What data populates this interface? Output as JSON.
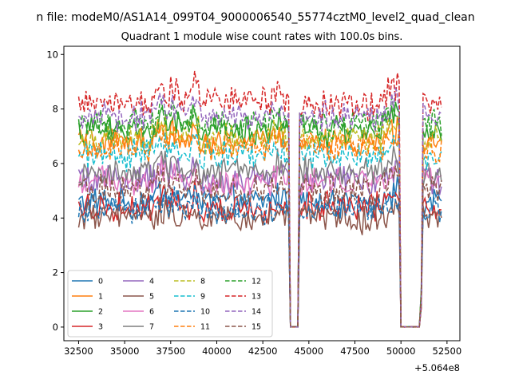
{
  "chart_data": {
    "type": "line",
    "suptitle": "n file: modeM0/AS1A14_099T04_9000006540_55774cztM0_level2_quad_clean",
    "title": "Quadrant 1 module wise count rates with 100.0s bins.",
    "xlabel": "",
    "ylabel": "",
    "x_offset_label": "+5.064e8",
    "xlim": [
      31700,
      53200
    ],
    "ylim": [
      -0.5,
      10.3
    ],
    "x_ticks": [
      32500,
      35000,
      37500,
      40000,
      42500,
      45000,
      47500,
      50000,
      52500
    ],
    "x_tick_labels": [
      "32500",
      "35000",
      "37500",
      "40000",
      "42500",
      "45000",
      "47500",
      "50000",
      "52500"
    ],
    "y_ticks": [
      0,
      2,
      4,
      6,
      8,
      10
    ],
    "y_tick_labels": [
      "0",
      "2",
      "4",
      "6",
      "8",
      "10"
    ],
    "x_start": 32500,
    "x_end": 52250,
    "bin": 100,
    "gaps": [
      [
        43920,
        44420
      ],
      [
        50000,
        51000
      ]
    ],
    "legend_position": "lower-left",
    "series": [
      {
        "name": "0",
        "base": 4.6,
        "color": "#1f77b4",
        "dash": "solid"
      },
      {
        "name": "1",
        "base": 6.8,
        "color": "#ff7f0e",
        "dash": "solid"
      },
      {
        "name": "2",
        "base": 7.2,
        "color": "#2ca02c",
        "dash": "solid"
      },
      {
        "name": "3",
        "base": 4.4,
        "color": "#d62728",
        "dash": "solid"
      },
      {
        "name": "4",
        "base": 5.4,
        "color": "#9467bd",
        "dash": "solid"
      },
      {
        "name": "5",
        "base": 4.0,
        "color": "#8c564b",
        "dash": "solid"
      },
      {
        "name": "6",
        "base": 5.3,
        "color": "#e377c2",
        "dash": "solid"
      },
      {
        "name": "7",
        "base": 5.7,
        "color": "#7f7f7f",
        "dash": "solid"
      },
      {
        "name": "8",
        "base": 6.9,
        "color": "#bcbd22",
        "dash": "dashed"
      },
      {
        "name": "9",
        "base": 6.3,
        "color": "#17becf",
        "dash": "dashed"
      },
      {
        "name": "10",
        "base": 4.3,
        "color": "#1f77b4",
        "dash": "dashed"
      },
      {
        "name": "11",
        "base": 6.6,
        "color": "#ff7f0e",
        "dash": "dashed"
      },
      {
        "name": "12",
        "base": 7.4,
        "color": "#2ca02c",
        "dash": "dashed"
      },
      {
        "name": "13",
        "base": 8.2,
        "color": "#d62728",
        "dash": "dashed"
      },
      {
        "name": "14",
        "base": 7.7,
        "color": "#9467bd",
        "dash": "dashed"
      },
      {
        "name": "15",
        "base": 5.0,
        "color": "#8c564b",
        "dash": "dashed"
      }
    ]
  }
}
